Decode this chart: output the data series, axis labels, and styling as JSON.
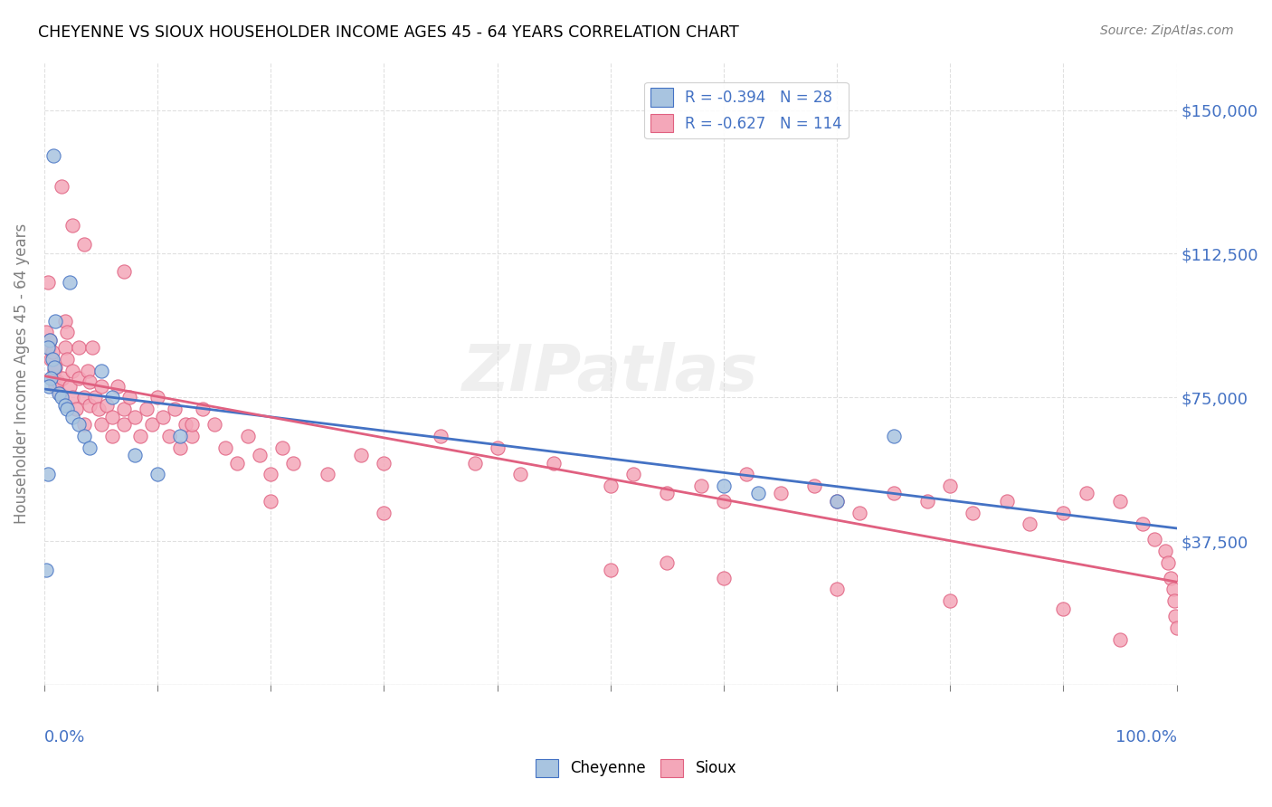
{
  "title": "CHEYENNE VS SIOUX HOUSEHOLDER INCOME AGES 45 - 64 YEARS CORRELATION CHART",
  "source": "Source: ZipAtlas.com",
  "xlabel": "",
  "ylabel": "Householder Income Ages 45 - 64 years",
  "xmin": 0.0,
  "xmax": 1.0,
  "ymin": 0,
  "ymax": 162500,
  "yticks": [
    0,
    37500,
    75000,
    112500,
    150000
  ],
  "ytick_labels": [
    "",
    "$37,500",
    "$75,000",
    "$112,500",
    "$150,000"
  ],
  "xtick_labels": [
    "0.0%",
    "100.0%"
  ],
  "cheyenne_color": "#a8c4e0",
  "sioux_color": "#f4a7b9",
  "cheyenne_line_color": "#4472c4",
  "sioux_line_color": "#e06080",
  "R_cheyenne": -0.394,
  "N_cheyenne": 28,
  "R_sioux": -0.627,
  "N_sioux": 114,
  "watermark": "ZIPatlas",
  "cheyenne_x": [
    0.008,
    0.022,
    0.01,
    0.005,
    0.003,
    0.007,
    0.009,
    0.006,
    0.004,
    0.013,
    0.015,
    0.018,
    0.02,
    0.025,
    0.03,
    0.035,
    0.04,
    0.05,
    0.06,
    0.08,
    0.1,
    0.12,
    0.6,
    0.63,
    0.7,
    0.75,
    0.003,
    0.002
  ],
  "cheyenne_y": [
    138000,
    105000,
    95000,
    90000,
    88000,
    85000,
    83000,
    80000,
    78000,
    76000,
    75000,
    73000,
    72000,
    70000,
    68000,
    65000,
    62000,
    82000,
    75000,
    60000,
    55000,
    65000,
    52000,
    50000,
    48000,
    65000,
    55000,
    30000
  ],
  "sioux_x": [
    0.002,
    0.004,
    0.005,
    0.006,
    0.007,
    0.008,
    0.009,
    0.01,
    0.01,
    0.012,
    0.014,
    0.016,
    0.018,
    0.018,
    0.02,
    0.02,
    0.022,
    0.025,
    0.025,
    0.028,
    0.03,
    0.03,
    0.035,
    0.035,
    0.038,
    0.04,
    0.04,
    0.042,
    0.045,
    0.048,
    0.05,
    0.05,
    0.055,
    0.06,
    0.06,
    0.065,
    0.07,
    0.07,
    0.075,
    0.08,
    0.085,
    0.09,
    0.095,
    0.1,
    0.105,
    0.11,
    0.115,
    0.12,
    0.125,
    0.13,
    0.14,
    0.15,
    0.16,
    0.17,
    0.18,
    0.19,
    0.2,
    0.21,
    0.22,
    0.25,
    0.28,
    0.3,
    0.35,
    0.38,
    0.4,
    0.42,
    0.45,
    0.5,
    0.52,
    0.55,
    0.58,
    0.6,
    0.62,
    0.65,
    0.68,
    0.7,
    0.72,
    0.75,
    0.78,
    0.8,
    0.82,
    0.85,
    0.87,
    0.9,
    0.92,
    0.95,
    0.97,
    0.98,
    0.99,
    0.992,
    0.995,
    0.997,
    0.998,
    0.999,
    1.0,
    0.003,
    0.015,
    0.025,
    0.035,
    0.07,
    0.13,
    0.2,
    0.3,
    0.5,
    0.55,
    0.6,
    0.7,
    0.8,
    0.9,
    0.95
  ],
  "sioux_y": [
    92000,
    88000,
    90000,
    85000,
    87000,
    80000,
    82000,
    78000,
    83000,
    79000,
    76000,
    80000,
    95000,
    88000,
    92000,
    85000,
    78000,
    82000,
    75000,
    72000,
    88000,
    80000,
    75000,
    68000,
    82000,
    73000,
    79000,
    88000,
    75000,
    72000,
    68000,
    78000,
    73000,
    70000,
    65000,
    78000,
    72000,
    68000,
    75000,
    70000,
    65000,
    72000,
    68000,
    75000,
    70000,
    65000,
    72000,
    62000,
    68000,
    65000,
    72000,
    68000,
    62000,
    58000,
    65000,
    60000,
    55000,
    62000,
    58000,
    55000,
    60000,
    58000,
    65000,
    58000,
    62000,
    55000,
    58000,
    52000,
    55000,
    50000,
    52000,
    48000,
    55000,
    50000,
    52000,
    48000,
    45000,
    50000,
    48000,
    52000,
    45000,
    48000,
    42000,
    45000,
    50000,
    48000,
    42000,
    38000,
    35000,
    32000,
    28000,
    25000,
    22000,
    18000,
    15000,
    105000,
    130000,
    120000,
    115000,
    108000,
    68000,
    48000,
    45000,
    30000,
    32000,
    28000,
    25000,
    22000,
    20000,
    12000
  ]
}
